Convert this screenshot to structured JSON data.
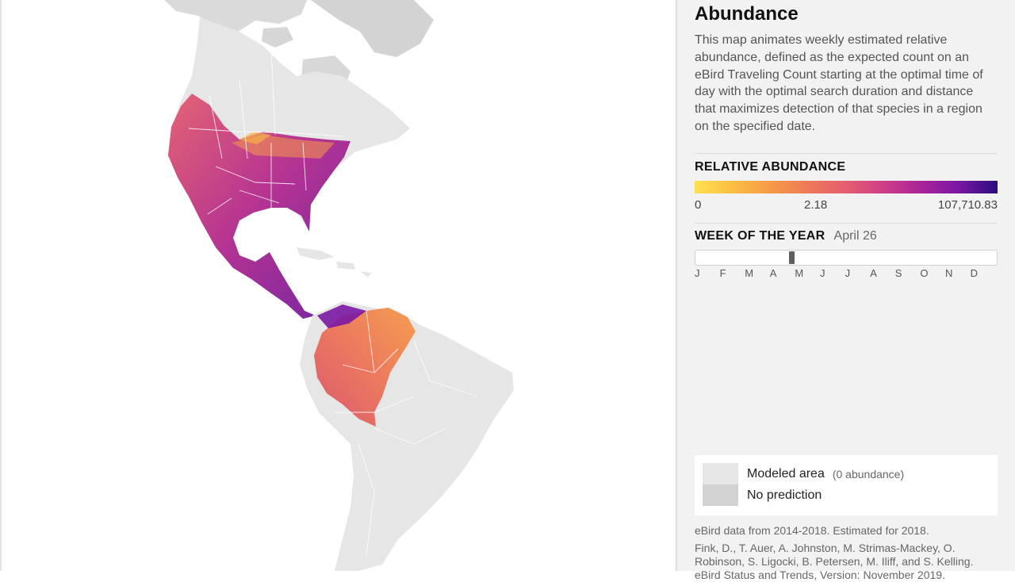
{
  "panel": {
    "title": "Abundance",
    "description": "This map animates weekly estimated relative abundance, defined as the expected count on an eBird Traveling Count starting at the optimal time of day with the optimal search duration and distance that maximizes detection of that species in a region on the specified date."
  },
  "legend": {
    "label": "RELATIVE ABUNDANCE",
    "min": "0",
    "mid": "2.18",
    "max": "107,710.83",
    "colors": [
      "#fde24f",
      "#f59a48",
      "#e45d6e",
      "#a92399",
      "#2c0d7f"
    ]
  },
  "week": {
    "label": "WEEK OF THE YEAR",
    "value": "April 26",
    "position": 0.315,
    "months": [
      "J",
      "F",
      "M",
      "A",
      "M",
      "J",
      "J",
      "A",
      "S",
      "O",
      "N",
      "D"
    ]
  },
  "key": {
    "modeled_label": "Modeled area",
    "modeled_note": "(0 abundance)",
    "modeled_color": "#e6e6e6",
    "no_prediction_label": "No prediction",
    "no_prediction_color": "#d2d2d2"
  },
  "data_note": "eBird data from 2014-2018. Estimated for 2018.",
  "citation": "Fink, D., T. Auer, A. Johnston, M. Strimas-Mackey, O. Robinson, S. Ligocki, B. Petersen, M. Iliff, and S. Kelling. eBird Status and Trends, Version: November 2019."
}
